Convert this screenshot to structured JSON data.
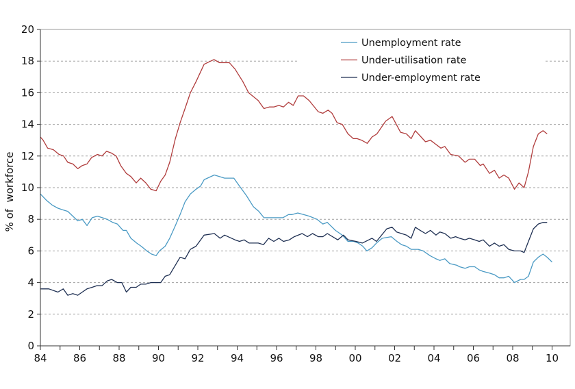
{
  "chart_data": {
    "type": "line",
    "title": "",
    "xlabel": "",
    "ylabel": "% of  workforce",
    "xlim": [
      1984,
      2010.9
    ],
    "ylim": [
      0,
      20
    ],
    "grid": "horizontal dashed",
    "legend_position": "top-right",
    "x_ticks": [
      {
        "value": 1984,
        "label": "84"
      },
      {
        "value": 1986,
        "label": "86"
      },
      {
        "value": 1988,
        "label": "88"
      },
      {
        "value": 1990,
        "label": "90"
      },
      {
        "value": 1992,
        "label": "92"
      },
      {
        "value": 1994,
        "label": "94"
      },
      {
        "value": 1996,
        "label": "96"
      },
      {
        "value": 1998,
        "label": "98"
      },
      {
        "value": 2000,
        "label": "00"
      },
      {
        "value": 2002,
        "label": "02"
      },
      {
        "value": 2004,
        "label": "04"
      },
      {
        "value": 2006,
        "label": "06"
      },
      {
        "value": 2008,
        "label": "08"
      },
      {
        "value": 2010,
        "label": "10"
      }
    ],
    "y_ticks": [
      0,
      2,
      4,
      6,
      8,
      10,
      12,
      14,
      16,
      18,
      20
    ],
    "series": [
      {
        "name": "Unemployment rate",
        "color": "#4a9ac4",
        "points": [
          [
            1984.0,
            9.6
          ],
          [
            1984.31,
            9.2
          ],
          [
            1984.6,
            8.9
          ],
          [
            1984.89,
            8.7
          ],
          [
            1985.12,
            8.6
          ],
          [
            1985.39,
            8.5
          ],
          [
            1985.65,
            8.2
          ],
          [
            1985.9,
            7.9
          ],
          [
            1986.13,
            8.0
          ],
          [
            1986.37,
            7.6
          ],
          [
            1986.63,
            8.1
          ],
          [
            1986.9,
            8.2
          ],
          [
            1987.15,
            8.1
          ],
          [
            1987.39,
            8.0
          ],
          [
            1987.68,
            7.8
          ],
          [
            1987.91,
            7.7
          ],
          [
            1988.2,
            7.3
          ],
          [
            1988.37,
            7.3
          ],
          [
            1988.6,
            6.8
          ],
          [
            1988.89,
            6.5
          ],
          [
            1989.12,
            6.3
          ],
          [
            1989.41,
            6.0
          ],
          [
            1989.65,
            5.8
          ],
          [
            1989.88,
            5.7
          ],
          [
            1990.05,
            6.0
          ],
          [
            1990.34,
            6.3
          ],
          [
            1990.57,
            6.8
          ],
          [
            1990.86,
            7.6
          ],
          [
            1991.1,
            8.3
          ],
          [
            1991.35,
            9.1
          ],
          [
            1991.62,
            9.6
          ],
          [
            1991.91,
            9.9
          ],
          [
            1992.14,
            10.1
          ],
          [
            1992.32,
            10.5
          ],
          [
            1992.84,
            10.8
          ],
          [
            1993.36,
            10.6
          ],
          [
            1993.83,
            10.6
          ],
          [
            1994.12,
            10.1
          ],
          [
            1994.47,
            9.5
          ],
          [
            1994.82,
            8.8
          ],
          [
            1995.1,
            8.5
          ],
          [
            1995.36,
            8.1
          ],
          [
            1995.63,
            8.1
          ],
          [
            1995.98,
            8.1
          ],
          [
            1996.32,
            8.1
          ],
          [
            1996.61,
            8.3
          ],
          [
            1996.79,
            8.3
          ],
          [
            1997.08,
            8.4
          ],
          [
            1997.37,
            8.3
          ],
          [
            1997.66,
            8.2
          ],
          [
            1998.06,
            8.0
          ],
          [
            1998.35,
            7.7
          ],
          [
            1998.58,
            7.8
          ],
          [
            1998.99,
            7.3
          ],
          [
            1999.34,
            7.0
          ],
          [
            1999.63,
            6.6
          ],
          [
            1999.92,
            6.6
          ],
          [
            2000.15,
            6.5
          ],
          [
            2000.38,
            6.3
          ],
          [
            2000.59,
            6.0
          ],
          [
            2000.85,
            6.2
          ],
          [
            2001.08,
            6.5
          ],
          [
            2001.37,
            6.8
          ],
          [
            2001.83,
            6.9
          ],
          [
            2002.12,
            6.6
          ],
          [
            2002.35,
            6.4
          ],
          [
            2002.6,
            6.3
          ],
          [
            2002.84,
            6.1
          ],
          [
            2003.2,
            6.1
          ],
          [
            2003.45,
            6.0
          ],
          [
            2003.8,
            5.7
          ],
          [
            2004.1,
            5.5
          ],
          [
            2004.3,
            5.4
          ],
          [
            2004.55,
            5.5
          ],
          [
            2004.8,
            5.2
          ],
          [
            2005.15,
            5.1
          ],
          [
            2005.3,
            5.0
          ],
          [
            2005.58,
            4.9
          ],
          [
            2005.8,
            5.0
          ],
          [
            2006.07,
            5.0
          ],
          [
            2006.3,
            4.8
          ],
          [
            2006.5,
            4.7
          ],
          [
            2006.82,
            4.6
          ],
          [
            2007.07,
            4.5
          ],
          [
            2007.31,
            4.3
          ],
          [
            2007.55,
            4.3
          ],
          [
            2007.8,
            4.4
          ],
          [
            2008.09,
            4.0
          ],
          [
            2008.4,
            4.2
          ],
          [
            2008.58,
            4.2
          ],
          [
            2008.8,
            4.4
          ],
          [
            2009.05,
            5.3
          ],
          [
            2009.3,
            5.6
          ],
          [
            2009.54,
            5.8
          ],
          [
            2009.75,
            5.6
          ],
          [
            2010.0,
            5.3
          ]
        ]
      },
      {
        "name": "Under-utilisation rate",
        "color": "#b03c3c",
        "points": [
          [
            1984.0,
            13.2
          ],
          [
            1984.14,
            13.0
          ],
          [
            1984.37,
            12.5
          ],
          [
            1984.66,
            12.4
          ],
          [
            1984.95,
            12.1
          ],
          [
            1985.18,
            12.0
          ],
          [
            1985.39,
            11.6
          ],
          [
            1985.65,
            11.5
          ],
          [
            1985.9,
            11.2
          ],
          [
            1986.13,
            11.4
          ],
          [
            1986.37,
            11.5
          ],
          [
            1986.6,
            11.9
          ],
          [
            1986.9,
            12.1
          ],
          [
            1987.13,
            12.0
          ],
          [
            1987.36,
            12.3
          ],
          [
            1987.59,
            12.2
          ],
          [
            1987.85,
            12.0
          ],
          [
            1988.08,
            11.4
          ],
          [
            1988.37,
            10.9
          ],
          [
            1988.6,
            10.7
          ],
          [
            1988.87,
            10.3
          ],
          [
            1989.1,
            10.6
          ],
          [
            1989.36,
            10.3
          ],
          [
            1989.61,
            9.9
          ],
          [
            1989.88,
            9.8
          ],
          [
            1990.11,
            10.4
          ],
          [
            1990.34,
            10.8
          ],
          [
            1990.57,
            11.6
          ],
          [
            1990.86,
            13.1
          ],
          [
            1991.1,
            14.1
          ],
          [
            1991.35,
            15.0
          ],
          [
            1991.62,
            16.0
          ],
          [
            1991.91,
            16.7
          ],
          [
            1992.32,
            17.8
          ],
          [
            1992.82,
            18.1
          ],
          [
            1993.1,
            17.9
          ],
          [
            1993.6,
            17.9
          ],
          [
            1993.89,
            17.5
          ],
          [
            1994.29,
            16.7
          ],
          [
            1994.58,
            16.0
          ],
          [
            1995.07,
            15.5
          ],
          [
            1995.36,
            15.0
          ],
          [
            1995.63,
            15.1
          ],
          [
            1995.86,
            15.1
          ],
          [
            1996.12,
            15.2
          ],
          [
            1996.35,
            15.1
          ],
          [
            1996.61,
            15.4
          ],
          [
            1996.85,
            15.2
          ],
          [
            1997.1,
            15.8
          ],
          [
            1997.37,
            15.8
          ],
          [
            1997.66,
            15.5
          ],
          [
            1998.12,
            14.8
          ],
          [
            1998.35,
            14.7
          ],
          [
            1998.62,
            14.9
          ],
          [
            1998.82,
            14.7
          ],
          [
            1999.08,
            14.1
          ],
          [
            1999.34,
            14.0
          ],
          [
            1999.63,
            13.4
          ],
          [
            1999.9,
            13.1
          ],
          [
            2000.09,
            13.1
          ],
          [
            2000.32,
            13.0
          ],
          [
            2000.61,
            12.8
          ],
          [
            2000.85,
            13.2
          ],
          [
            2001.1,
            13.4
          ],
          [
            2001.54,
            14.2
          ],
          [
            2001.87,
            14.5
          ],
          [
            2002.3,
            13.5
          ],
          [
            2002.6,
            13.4
          ],
          [
            2002.84,
            13.1
          ],
          [
            2003.05,
            13.6
          ],
          [
            2003.57,
            12.9
          ],
          [
            2003.82,
            13.0
          ],
          [
            2004.35,
            12.5
          ],
          [
            2004.55,
            12.6
          ],
          [
            2004.85,
            12.1
          ],
          [
            2005.25,
            12.0
          ],
          [
            2005.58,
            11.6
          ],
          [
            2005.8,
            11.8
          ],
          [
            2006.07,
            11.8
          ],
          [
            2006.35,
            11.4
          ],
          [
            2006.5,
            11.5
          ],
          [
            2006.82,
            10.9
          ],
          [
            2007.07,
            11.1
          ],
          [
            2007.31,
            10.6
          ],
          [
            2007.55,
            10.8
          ],
          [
            2007.8,
            10.6
          ],
          [
            2008.09,
            9.9
          ],
          [
            2008.32,
            10.3
          ],
          [
            2008.58,
            10.0
          ],
          [
            2008.8,
            11.0
          ],
          [
            2009.05,
            12.6
          ],
          [
            2009.3,
            13.4
          ],
          [
            2009.54,
            13.6
          ],
          [
            2009.75,
            13.4
          ]
        ]
      },
      {
        "name": "Under-employment rate",
        "color": "#1e2f52",
        "points": [
          [
            1984.0,
            3.6
          ],
          [
            1984.43,
            3.6
          ],
          [
            1984.89,
            3.4
          ],
          [
            1985.16,
            3.6
          ],
          [
            1985.39,
            3.2
          ],
          [
            1985.65,
            3.3
          ],
          [
            1985.9,
            3.2
          ],
          [
            1986.13,
            3.4
          ],
          [
            1986.37,
            3.6
          ],
          [
            1986.63,
            3.7
          ],
          [
            1986.86,
            3.8
          ],
          [
            1987.13,
            3.8
          ],
          [
            1987.39,
            4.1
          ],
          [
            1987.62,
            4.2
          ],
          [
            1987.91,
            4.0
          ],
          [
            1988.14,
            4.0
          ],
          [
            1988.37,
            3.4
          ],
          [
            1988.6,
            3.7
          ],
          [
            1988.87,
            3.7
          ],
          [
            1989.1,
            3.9
          ],
          [
            1989.36,
            3.9
          ],
          [
            1989.61,
            4.0
          ],
          [
            1989.88,
            4.0
          ],
          [
            1990.11,
            4.0
          ],
          [
            1990.34,
            4.4
          ],
          [
            1990.57,
            4.5
          ],
          [
            1990.86,
            5.1
          ],
          [
            1991.1,
            5.6
          ],
          [
            1991.35,
            5.5
          ],
          [
            1991.62,
            6.1
          ],
          [
            1991.91,
            6.3
          ],
          [
            1992.32,
            7.0
          ],
          [
            1992.84,
            7.1
          ],
          [
            1993.13,
            6.8
          ],
          [
            1993.36,
            7.0
          ],
          [
            1993.89,
            6.7
          ],
          [
            1994.12,
            6.6
          ],
          [
            1994.35,
            6.7
          ],
          [
            1994.61,
            6.5
          ],
          [
            1994.93,
            6.5
          ],
          [
            1995.07,
            6.5
          ],
          [
            1995.34,
            6.4
          ],
          [
            1995.6,
            6.8
          ],
          [
            1995.86,
            6.6
          ],
          [
            1996.12,
            6.8
          ],
          [
            1996.35,
            6.6
          ],
          [
            1996.65,
            6.7
          ],
          [
            1996.9,
            6.9
          ],
          [
            1997.3,
            7.1
          ],
          [
            1997.57,
            6.9
          ],
          [
            1997.83,
            7.1
          ],
          [
            1998.12,
            6.9
          ],
          [
            1998.35,
            6.9
          ],
          [
            1998.58,
            7.1
          ],
          [
            1999.11,
            6.7
          ],
          [
            1999.4,
            7.0
          ],
          [
            1999.63,
            6.7
          ],
          [
            2000.04,
            6.6
          ],
          [
            2000.36,
            6.5
          ],
          [
            2000.85,
            6.8
          ],
          [
            2001.08,
            6.6
          ],
          [
            2001.6,
            7.4
          ],
          [
            2001.87,
            7.5
          ],
          [
            2002.1,
            7.2
          ],
          [
            2002.35,
            7.1
          ],
          [
            2002.6,
            7.0
          ],
          [
            2002.84,
            6.8
          ],
          [
            2003.05,
            7.5
          ],
          [
            2003.3,
            7.3
          ],
          [
            2003.57,
            7.1
          ],
          [
            2003.82,
            7.3
          ],
          [
            2004.1,
            7.0
          ],
          [
            2004.3,
            7.2
          ],
          [
            2004.55,
            7.1
          ],
          [
            2004.85,
            6.8
          ],
          [
            2005.1,
            6.9
          ],
          [
            2005.3,
            6.8
          ],
          [
            2005.58,
            6.7
          ],
          [
            2005.8,
            6.8
          ],
          [
            2006.07,
            6.7
          ],
          [
            2006.3,
            6.6
          ],
          [
            2006.5,
            6.7
          ],
          [
            2006.82,
            6.3
          ],
          [
            2007.07,
            6.5
          ],
          [
            2007.31,
            6.3
          ],
          [
            2007.55,
            6.4
          ],
          [
            2007.8,
            6.1
          ],
          [
            2008.09,
            6.0
          ],
          [
            2008.4,
            6.0
          ],
          [
            2008.58,
            5.9
          ],
          [
            2008.8,
            6.6
          ],
          [
            2009.05,
            7.4
          ],
          [
            2009.3,
            7.7
          ],
          [
            2009.54,
            7.8
          ],
          [
            2009.75,
            7.8
          ]
        ]
      }
    ]
  }
}
